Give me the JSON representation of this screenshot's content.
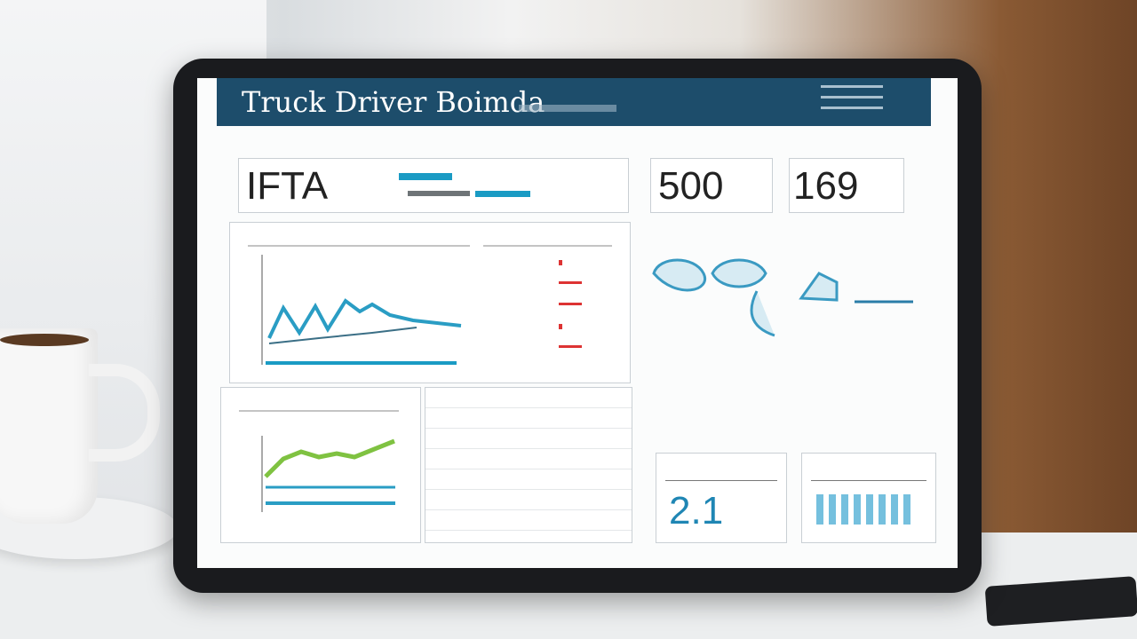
{
  "header": {
    "title": "Truck Driver Boimda"
  },
  "cards": {
    "ifta": {
      "label": "IFTA"
    },
    "first": {
      "value": "500"
    },
    "second": {
      "value": "169"
    },
    "third": {
      "value": "2.1"
    }
  }
}
